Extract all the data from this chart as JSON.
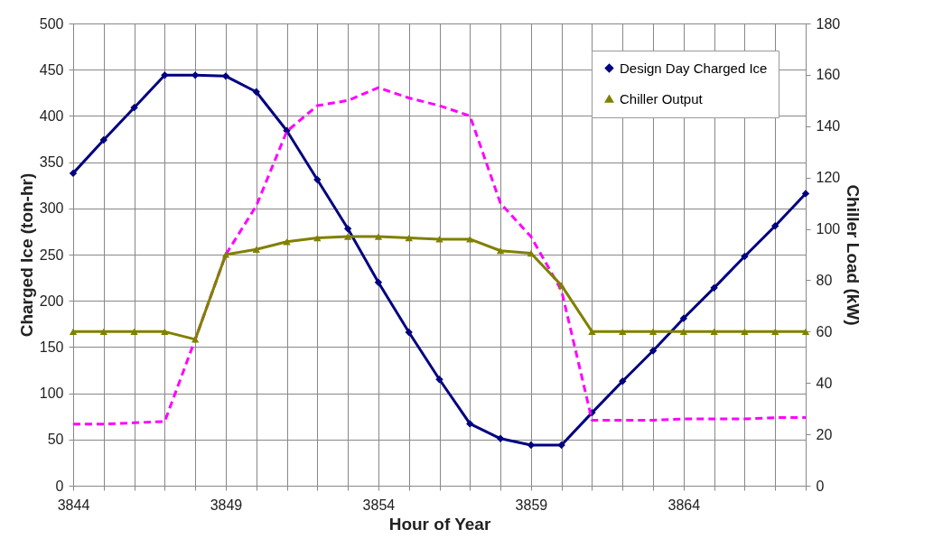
{
  "chart_data": {
    "type": "line",
    "xlabel": "Hour of Year",
    "ylabel": "Charged Ice (ton-hr)",
    "y2label": "Chiller Load (kW)",
    "x": [
      3844,
      3845,
      3846,
      3847,
      3848,
      3849,
      3850,
      3851,
      3852,
      3853,
      3854,
      3855,
      3856,
      3857,
      3858,
      3859,
      3860,
      3861,
      3862,
      3863,
      3864,
      3865,
      3866,
      3867,
      3868
    ],
    "series": [
      {
        "name": "Design Day Charged Ice",
        "color": "#000080",
        "marker": "diamond",
        "values": [
          338,
          374,
          409,
          444,
          444,
          443,
          426,
          384,
          331,
          278,
          220,
          166,
          115,
          67,
          51,
          44,
          44,
          79,
          113,
          146,
          181,
          214,
          248,
          281,
          316
        ]
      },
      {
        "color": "#ff00ff",
        "marker": "none",
        "line_style": "dashed",
        "axis": "y2",
        "values": [
          24,
          24,
          24.5,
          25,
          57,
          90,
          109,
          138,
          148,
          150,
          155,
          151,
          148,
          144,
          110,
          97,
          76,
          25.5,
          25.5,
          25.5,
          26,
          26,
          26,
          26.5,
          26.5
        ]
      },
      {
        "name": "Chiller Output",
        "color": "#808000",
        "marker": "triangle",
        "axis": "y2",
        "values": [
          60,
          60,
          60,
          60,
          57,
          90,
          92,
          95,
          96.5,
          97,
          97,
          96.5,
          96,
          96,
          91.5,
          90.5,
          78,
          60,
          60,
          60,
          60,
          60,
          60,
          60,
          60
        ]
      }
    ],
    "xlim": [
      3844,
      3868
    ],
    "xticks": [
      3844,
      {
        "value": 3845,
        "label": null
      },
      {
        "value": 3846,
        "label": null
      },
      {
        "value": 3847,
        "label": null
      },
      {
        "value": 3848,
        "label": null
      },
      3849,
      {
        "value": 3850,
        "label": null
      },
      {
        "value": 3851,
        "label": null
      },
      {
        "value": 3852,
        "label": null
      },
      {
        "value": 3853,
        "label": null
      },
      3854,
      {
        "value": 3855,
        "label": null
      },
      {
        "value": 3856,
        "label": null
      },
      {
        "value": 3857,
        "label": null
      },
      {
        "value": 3858,
        "label": null
      },
      3859,
      {
        "value": 3860,
        "label": null
      },
      {
        "value": 3861,
        "label": null
      },
      {
        "value": 3862,
        "label": null
      },
      {
        "value": 3863,
        "label": null
      },
      3864,
      {
        "value": 3865,
        "label": null
      },
      {
        "value": 3866,
        "label": null
      },
      {
        "value": 3867,
        "label": null
      },
      {
        "value": 3868,
        "label": null
      }
    ],
    "ylim": [
      0,
      500
    ],
    "yticks": [
      0,
      50,
      100,
      150,
      200,
      250,
      300,
      350,
      400,
      450,
      500
    ],
    "y2lim": [
      0,
      180
    ],
    "y2ticks": [
      0,
      20,
      40,
      60,
      80,
      100,
      120,
      140,
      160,
      180
    ],
    "grid": true,
    "legend": "top right"
  }
}
